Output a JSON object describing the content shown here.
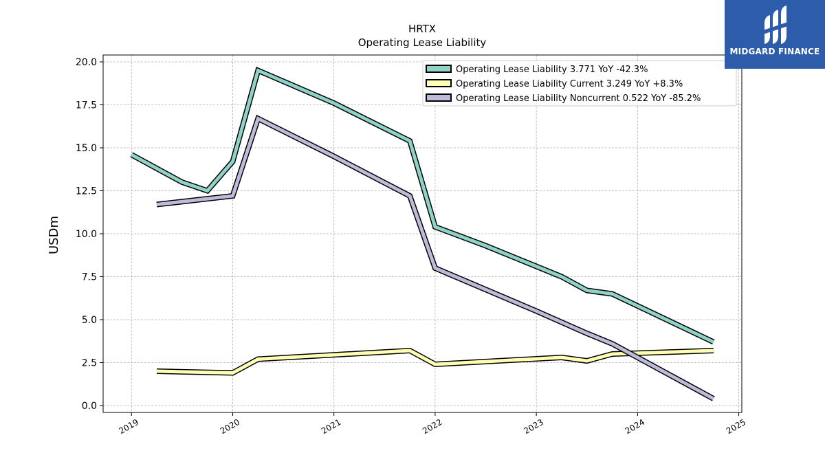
{
  "chart_data": {
    "type": "line",
    "title": "HRTX",
    "subtitle": "Operating Lease Liability",
    "xlabel": "",
    "ylabel": "USDm",
    "xlim": [
      2018.72,
      2025.03
    ],
    "ylim": [
      -0.4,
      20.4
    ],
    "x_ticks": [
      "2019",
      "2020",
      "2021",
      "2022",
      "2023",
      "2024",
      "2025"
    ],
    "y_ticks": [
      "0.0",
      "2.5",
      "5.0",
      "7.5",
      "10.0",
      "12.5",
      "15.0",
      "17.5",
      "20.0"
    ],
    "grid": true,
    "legend_position": "top-right",
    "series": [
      {
        "name": "Operating Lease Liability  3.771 YoY -42.3%",
        "color": "#8dd3c7",
        "x": [
          2019.0,
          2019.5,
          2019.75,
          2020.0,
          2020.25,
          2021.0,
          2021.75,
          2022.0,
          2022.5,
          2023.0,
          2023.25,
          2023.5,
          2023.75,
          2024.0,
          2024.75
        ],
        "y": [
          14.6,
          13.0,
          12.5,
          14.2,
          19.5,
          17.6,
          15.4,
          10.4,
          9.3,
          8.1,
          7.5,
          6.7,
          6.5,
          5.8,
          3.7
        ]
      },
      {
        "name": "Operating Lease Liability Current  3.249 YoY +8.3%",
        "color": "#ffffb3",
        "x": [
          2019.25,
          2020.0,
          2020.25,
          2021.75,
          2022.0,
          2023.25,
          2023.5,
          2023.75,
          2024.75
        ],
        "y": [
          2.0,
          1.9,
          2.7,
          3.2,
          2.4,
          2.8,
          2.6,
          3.0,
          3.2
        ]
      },
      {
        "name": "Operating Lease Liability Noncurrent  0.522 YoY -85.2%",
        "color": "#bebada",
        "x": [
          2019.25,
          2020.0,
          2020.25,
          2021.0,
          2021.75,
          2022.0,
          2023.0,
          2023.5,
          2023.75,
          2024.0,
          2024.75
        ],
        "y": [
          11.7,
          12.2,
          16.7,
          14.5,
          12.2,
          8.0,
          5.5,
          4.2,
          3.6,
          2.8,
          0.4
        ]
      }
    ]
  },
  "logo": {
    "text": "MIDGARD FINANCE",
    "background": "#2d5cab"
  }
}
